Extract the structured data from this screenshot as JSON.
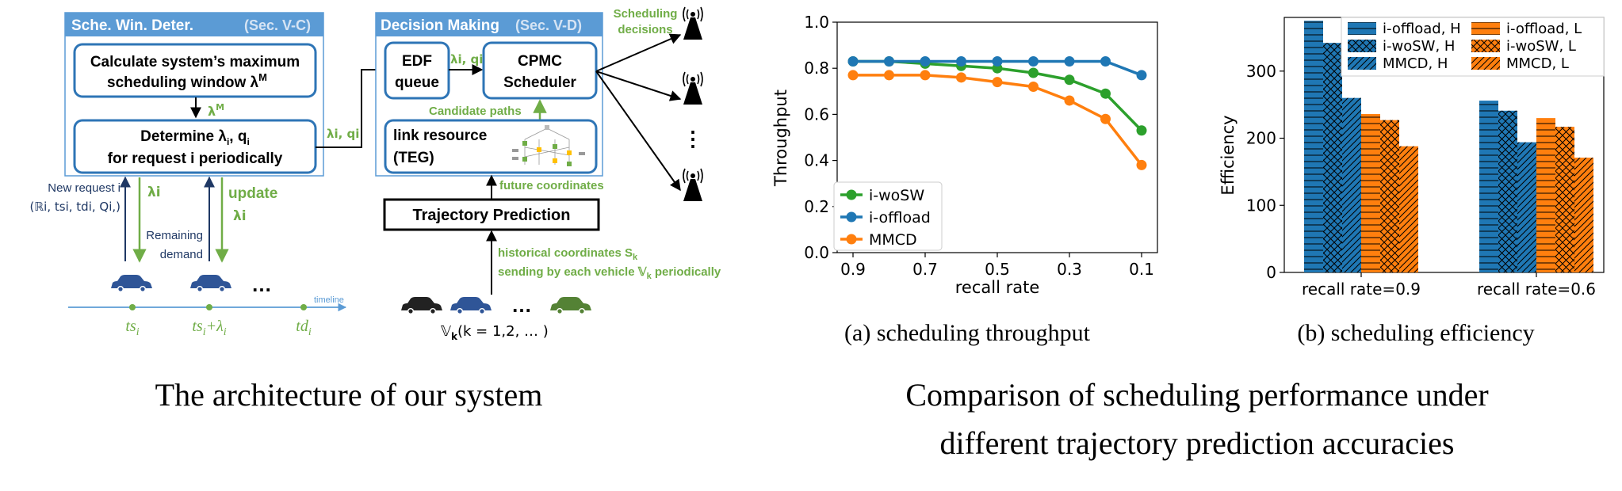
{
  "architecture": {
    "caption": "The architecture of our system",
    "window_panel": {
      "title": "Sche. Win. Deter.",
      "section": "(Sec. V-C)"
    },
    "calc_box": {
      "line1": "Calculate system’s maximum",
      "line2": "scheduling window λ",
      "sup": "M"
    },
    "lambda_m": {
      "label": "λ",
      "sup": "M"
    },
    "determine_box": {
      "line1": "Determine λ",
      "line1_sub": "i",
      "line1_mid": ", q",
      "line1_sub2": "i",
      "line2": "for request i periodically"
    },
    "decision_panel": {
      "title": "Decision Making",
      "section": "(Sec. V-D)"
    },
    "edf_box": {
      "line1": "EDF",
      "line2": "queue"
    },
    "cpmc_box": {
      "line1": "CPMC",
      "line2": "Scheduler"
    },
    "link_box": {
      "line1": "link resource",
      "line2": "(TEG)"
    },
    "candidate_paths": "Candidate paths",
    "lambda_q_top": "λi, qi",
    "lambda_q_mid": "λi, qi",
    "scheduling_decisions": {
      "line1": "Scheduling",
      "line2": "decisions"
    },
    "trajectory_box": "Trajectory Prediction",
    "future_coordinates": "future coordinates",
    "historical": {
      "line1": "historical coordinates S",
      "sub": "k",
      "line2": "sending by each vehicle 𝕍",
      "line2_sub": "k",
      "line2_end": " periodically"
    },
    "new_request": {
      "line1": "New request i",
      "line2": "(ℝi, tsi, tdi, Qi,)"
    },
    "lambda_i": "λi",
    "update": {
      "line1": "update",
      "line2": "λi"
    },
    "remaining": {
      "line1": "Remaining",
      "line2": "demand"
    },
    "ellipsis": "…",
    "timeline": "timeline",
    "ts": "ts",
    "ts_plus": "ts",
    "ts_plus_suffix": "+λ",
    "td": "td",
    "sub_i": "i",
    "vehicles_label": {
      "main": "𝕍",
      "sub": "k",
      "rest": "(k = 1,2, … )"
    },
    "colors": {
      "panel_blue": "#5b9bd5",
      "box_border": "#2e75b6",
      "green": "#70ad47",
      "navy": "#1f3864",
      "car_dark": "#2f5597",
      "car_black": "#222222",
      "car_green": "#548235"
    }
  },
  "comparison": {
    "caption_line1": "Comparison of scheduling performance under",
    "caption_line2": "different trajectory prediction accuracies"
  },
  "chart_data": [
    {
      "type": "line",
      "caption": "(a)  scheduling throughput",
      "xlabel": "recall rate",
      "ylabel": "Throughput",
      "x": [
        0.9,
        0.8,
        0.7,
        0.6,
        0.5,
        0.4,
        0.3,
        0.2,
        0.1
      ],
      "x_ticks": [
        "0.9",
        "0.7",
        "0.5",
        "0.3",
        "0.1"
      ],
      "x_reversed": true,
      "ylim": [
        0.0,
        1.0
      ],
      "y_ticks": [
        "0.0",
        "0.2",
        "0.4",
        "0.6",
        "0.8",
        "1.0"
      ],
      "legend_position": "lower-left",
      "series": [
        {
          "name": "i-woSW",
          "color": "#2ca02c",
          "values": [
            0.83,
            0.83,
            0.82,
            0.81,
            0.8,
            0.78,
            0.75,
            0.69,
            0.53
          ]
        },
        {
          "name": "i-offload",
          "color": "#1f77b4",
          "values": [
            0.83,
            0.83,
            0.83,
            0.83,
            0.83,
            0.83,
            0.83,
            0.83,
            0.77
          ]
        },
        {
          "name": "MMCD",
          "color": "#ff7f0e",
          "values": [
            0.77,
            0.77,
            0.77,
            0.76,
            0.74,
            0.72,
            0.66,
            0.58,
            0.38
          ]
        }
      ]
    },
    {
      "type": "bar",
      "caption": "(b)  scheduling efficiency",
      "ylabel": "Efficiency",
      "categories": [
        "recall rate=0.9",
        "recall rate=0.6"
      ],
      "ylim": [
        0,
        380
      ],
      "y_ticks": [
        "0",
        "100",
        "200",
        "300"
      ],
      "legend_position": "top",
      "series": [
        {
          "name": "i-offload, H",
          "color": "#1f77b4",
          "hatch": "horizontal",
          "values": [
            375,
            256
          ]
        },
        {
          "name": "i-woSW, H",
          "color": "#1f77b4",
          "hatch": "cross",
          "values": [
            342,
            241
          ]
        },
        {
          "name": "MMCD, H",
          "color": "#1f77b4",
          "hatch": "diagonal",
          "values": [
            260,
            194
          ]
        },
        {
          "name": "i-offload, L",
          "color": "#ff7f0e",
          "hatch": "horizontal",
          "values": [
            236,
            230
          ]
        },
        {
          "name": "i-woSW, L",
          "color": "#ff7f0e",
          "hatch": "cross",
          "values": [
            227,
            217
          ]
        },
        {
          "name": "MMCD, L",
          "color": "#ff7f0e",
          "hatch": "diagonal",
          "values": [
            188,
            171
          ]
        }
      ]
    }
  ]
}
